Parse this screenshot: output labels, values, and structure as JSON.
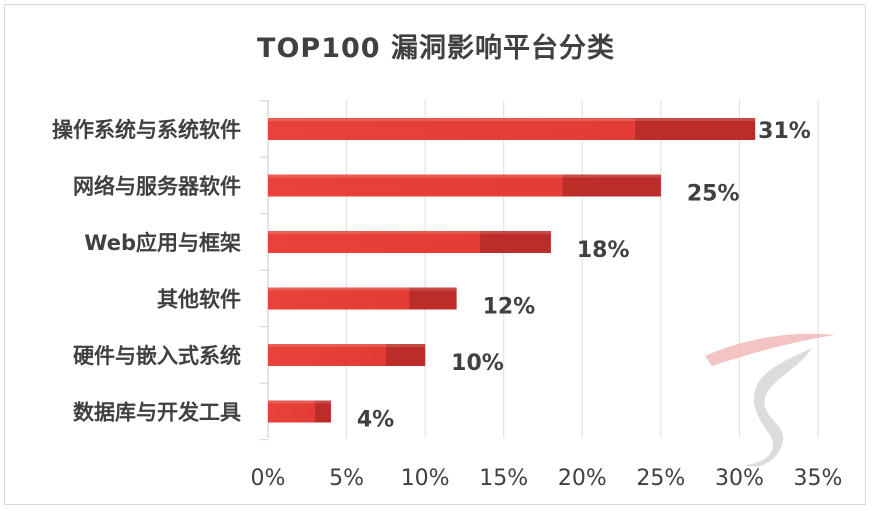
{
  "chart_data": {
    "type": "bar",
    "orientation": "horizontal",
    "title": "TOP100 漏洞影响平台分类",
    "categories": [
      "操作系统与系统软件",
      "网络与服务器软件",
      "Web应用与框架",
      "其他软件",
      "硬件与嵌入式系统",
      "数据库与开发工具"
    ],
    "values": [
      31,
      25,
      18,
      12,
      10,
      4
    ],
    "value_labels": [
      "31%",
      "25%",
      "18%",
      "12%",
      "10%",
      "4%"
    ],
    "xlim": [
      0,
      35
    ],
    "xticks": [
      0,
      5,
      10,
      15,
      20,
      25,
      30,
      35
    ],
    "xtick_labels": [
      "0%",
      "5%",
      "10%",
      "15%",
      "20%",
      "25%",
      "30%",
      "35%"
    ],
    "grid": "vertical",
    "legend": "none",
    "colors": {
      "bar": "#e8423a",
      "bar_dark": "#b52a27",
      "grid": "#e3e3e3",
      "text": "#404040",
      "watermark": "#f0b8b8"
    }
  }
}
